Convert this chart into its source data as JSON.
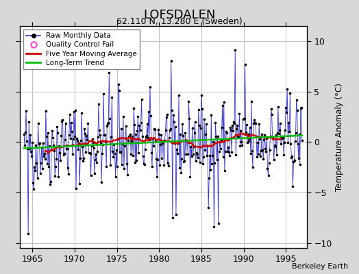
{
  "title": "LOFSDALEN",
  "subtitle": "62.110 N, 13.280 E (Sweden)",
  "ylabel": "Temperature Anomaly (°C)",
  "attribution": "Berkeley Earth",
  "xlim": [
    1963.5,
    1997.5
  ],
  "ylim": [
    -10.5,
    11.5
  ],
  "yticks": [
    -10,
    -5,
    0,
    5,
    10
  ],
  "xticks": [
    1965,
    1970,
    1975,
    1980,
    1985,
    1990,
    1995
  ],
  "bg_color": "#d8d8d8",
  "plot_bg_color": "#ffffff",
  "grid_color": "#c0c0c0",
  "raw_line_color": "#3333cc",
  "raw_dot_color": "#000000",
  "moving_avg_color": "#cc0000",
  "trend_color": "#00bb00",
  "qc_fail_color": "#ff44cc",
  "start_year": 1964,
  "end_year": 1996,
  "seed": 42
}
